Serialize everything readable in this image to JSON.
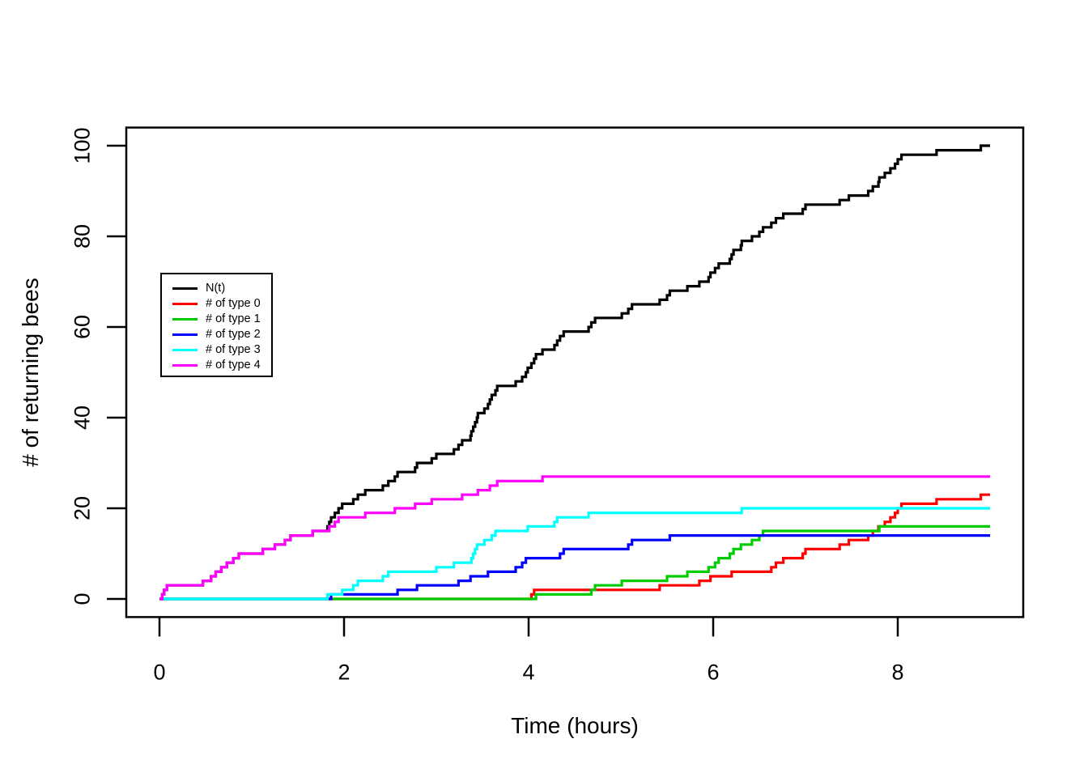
{
  "figure": {
    "background": "#ffffff",
    "axis_color": "#000000"
  },
  "chart_data": {
    "type": "line",
    "subtype": "step-counting-process",
    "title": "",
    "xlabel": "Time (hours)",
    "ylabel": "# of returning bees",
    "xlim": [
      0,
      9
    ],
    "ylim": [
      0,
      100
    ],
    "xticks": [
      0,
      2,
      4,
      6,
      8
    ],
    "yticks": [
      0,
      20,
      40,
      60,
      80,
      100
    ],
    "grid": false,
    "legend_position": "left-middle",
    "x_start": 0,
    "x_end": 9.0,
    "note": "Each series is a cumulative count: the k-th event time corresponds to the step up to value k.",
    "series": [
      {
        "name": "N(t)",
        "color": "#000000",
        "final_value": 100,
        "event_times": [
          0.03,
          0.05,
          0.08,
          0.47,
          0.56,
          0.61,
          0.67,
          0.73,
          0.8,
          0.86,
          1.12,
          1.25,
          1.36,
          1.42,
          1.66,
          1.82,
          1.84,
          1.86,
          1.9,
          1.94,
          1.98,
          2.1,
          2.15,
          2.23,
          2.42,
          2.48,
          2.55,
          2.58,
          2.77,
          2.79,
          2.95,
          3.0,
          3.19,
          3.24,
          3.28,
          3.37,
          3.38,
          3.4,
          3.42,
          3.44,
          3.45,
          3.52,
          3.56,
          3.58,
          3.6,
          3.64,
          3.66,
          3.86,
          3.93,
          3.97,
          3.99,
          4.03,
          4.06,
          4.08,
          4.15,
          4.28,
          4.31,
          4.34,
          4.38,
          4.65,
          4.68,
          4.72,
          5.01,
          5.08,
          5.12,
          5.42,
          5.5,
          5.53,
          5.72,
          5.85,
          5.95,
          5.97,
          6.02,
          6.06,
          6.18,
          6.2,
          6.22,
          6.3,
          6.31,
          6.42,
          6.5,
          6.54,
          6.63,
          6.68,
          6.76,
          6.97,
          7.0,
          7.37,
          7.47,
          7.68,
          7.73,
          7.79,
          7.8,
          7.86,
          7.92,
          7.97,
          8.0,
          8.04,
          8.42,
          8.9
        ]
      },
      {
        "name": "# of type 0",
        "color": "#FF0000",
        "final_value": 23,
        "event_times": [
          4.03,
          4.06,
          5.42,
          5.85,
          5.97,
          6.2,
          6.63,
          6.68,
          6.76,
          6.97,
          7.0,
          7.37,
          7.47,
          7.68,
          7.73,
          7.79,
          7.86,
          7.92,
          7.97,
          8.0,
          8.04,
          8.42,
          8.9
        ]
      },
      {
        "name": "# of type 1",
        "color": "#00CD00",
        "final_value": 16,
        "event_times": [
          4.08,
          4.68,
          4.72,
          5.01,
          5.5,
          5.72,
          5.95,
          6.02,
          6.06,
          6.18,
          6.22,
          6.3,
          6.42,
          6.5,
          6.54,
          7.8
        ]
      },
      {
        "name": "# of type 2",
        "color": "#0000FF",
        "final_value": 14,
        "event_times": [
          1.86,
          2.58,
          2.79,
          3.24,
          3.37,
          3.56,
          3.86,
          3.93,
          3.97,
          4.34,
          4.38,
          5.08,
          5.12,
          5.53
        ]
      },
      {
        "name": "# of type 3",
        "color": "#00FFFF",
        "final_value": 20,
        "event_times": [
          1.82,
          1.98,
          2.1,
          2.15,
          2.42,
          2.48,
          3.0,
          3.19,
          3.38,
          3.4,
          3.42,
          3.44,
          3.52,
          3.6,
          3.64,
          3.99,
          4.28,
          4.31,
          4.65,
          6.31
        ]
      },
      {
        "name": "# of type 4",
        "color": "#FF00FF",
        "final_value": 27,
        "event_times": [
          0.03,
          0.05,
          0.08,
          0.47,
          0.56,
          0.61,
          0.67,
          0.73,
          0.8,
          0.86,
          1.12,
          1.25,
          1.36,
          1.42,
          1.66,
          1.84,
          1.9,
          1.94,
          2.23,
          2.55,
          2.77,
          2.95,
          3.28,
          3.45,
          3.58,
          3.66,
          4.15
        ]
      }
    ]
  }
}
